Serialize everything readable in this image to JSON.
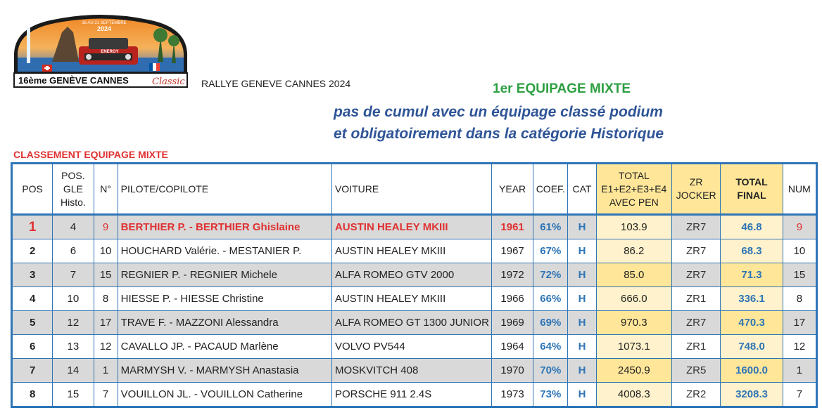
{
  "logo": {
    "edition_text": "16ème GENÈVE CANNES",
    "classic_text": "Classic",
    "dates_text": "16 AU 21 SEPTEMBRE",
    "year_text": "2024",
    "sponsor_text": "ENERGY"
  },
  "event_name": "RALLYE GENEVE CANNES 2024",
  "heading": {
    "title": "1er EQUIPAGE MIXTE",
    "line1": "pas de cumul avec un équipage classé podium",
    "line2": "et obligatoirement dans la catégorie Historique"
  },
  "section_title": "CLASSEMENT EQUIPAGE MIXTE",
  "columns": {
    "pos": "POS",
    "pos_gle_1": "POS.",
    "pos_gle_2": "GLE",
    "pos_gle_3": "Histo.",
    "n": "N°",
    "pilote": "PILOTE/COPILOTE",
    "voiture": "VOITURE",
    "year": "YEAR",
    "coef": "COEF.",
    "cat": "CAT",
    "total_1": "TOTAL",
    "total_2": "E1+E2+E3+E4",
    "total_3": "AVEC PEN",
    "zr_1": "ZR",
    "zr_2": "JOCKER",
    "final_1": "TOTAL",
    "final_2": "FINAL",
    "num": "NUM"
  },
  "colors": {
    "border": "#2e75b6",
    "winner": "#e03131",
    "highlight": "#ffe699",
    "highlight_light": "#fff2cc",
    "row_alt": "#d9d9d9",
    "title_green": "#2ea043",
    "subtitle_blue": "#2f5597"
  },
  "rows": [
    {
      "pos": "1",
      "gle": "4",
      "n": "9",
      "pilote": "BERTHIER P. - BERTHIER Ghislaine",
      "voiture": "AUSTIN HEALEY MKIII",
      "year": "1961",
      "coef": "61%",
      "cat": "H",
      "total": "103.9",
      "zr": "ZR7",
      "final": "46.8",
      "num": "9"
    },
    {
      "pos": "2",
      "gle": "6",
      "n": "10",
      "pilote": "HOUCHARD Valérie. -  MESTANIER P.",
      "voiture": "AUSTIN HEALEY MKIII",
      "year": "1967",
      "coef": "67%",
      "cat": "H",
      "total": "86.2",
      "zr": "ZR7",
      "final": "68.3",
      "num": "10"
    },
    {
      "pos": "3",
      "gle": "7",
      "n": "15",
      "pilote": "REGNIER P. - REGNIER Michele",
      "voiture": "ALFA ROMEO GTV 2000",
      "year": "1972",
      "coef": "72%",
      "cat": "H",
      "total": "85.0",
      "zr": "ZR7",
      "final": "71.3",
      "num": "15"
    },
    {
      "pos": "4",
      "gle": "10",
      "n": "8",
      "pilote": "HIESSE P. - HIESSE Christine",
      "voiture": "AUSTIN HEALEY MKIII",
      "year": "1966",
      "coef": "66%",
      "cat": "H",
      "total": "666.0",
      "zr": "ZR1",
      "final": "336.1",
      "num": "8"
    },
    {
      "pos": "5",
      "gle": "12",
      "n": "17",
      "pilote": "TRAVE F. - MAZZONI Alessandra",
      "voiture": "ALFA ROMEO GT 1300 JUNIOR",
      "year": "1969",
      "coef": "69%",
      "cat": "H",
      "total": "970.3",
      "zr": "ZR7",
      "final": "470.3",
      "num": "17"
    },
    {
      "pos": "6",
      "gle": "13",
      "n": "12",
      "pilote": "CAVALLO JP. - PACAUD Marlène",
      "voiture": "VOLVO PV544",
      "year": "1964",
      "coef": "64%",
      "cat": "H",
      "total": "1073.1",
      "zr": "ZR1",
      "final": "748.0",
      "num": "12"
    },
    {
      "pos": "7",
      "gle": "14",
      "n": "1",
      "pilote": "MARMYSH V. - MARMYSH Anastasia",
      "voiture": "MOSKVITCH 408",
      "year": "1970",
      "coef": "70%",
      "cat": "H",
      "total": "2450.9",
      "zr": "ZR5",
      "final": "1600.0",
      "num": "1"
    },
    {
      "pos": "8",
      "gle": "15",
      "n": "7",
      "pilote": "VOUILLON JL. - VOUILLON Catherine",
      "voiture": "PORSCHE 911 2.4S",
      "year": "1973",
      "coef": "73%",
      "cat": "H",
      "total": "4008.3",
      "zr": "ZR2",
      "final": "3208.3",
      "num": "7"
    }
  ]
}
